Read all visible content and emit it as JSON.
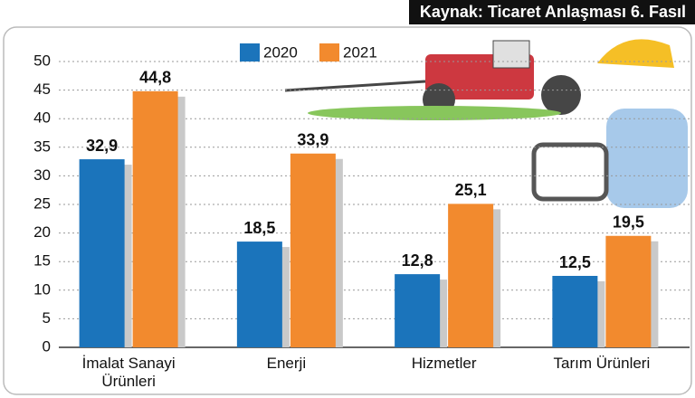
{
  "chart_data": {
    "type": "bar",
    "source": "Kaynak: Ticaret Anlaşması 6. Fasıl",
    "categories": [
      "İmalat Sanayi Ürünleri",
      "Enerji",
      "Hizmetler",
      "Tarım Ürünleri"
    ],
    "series": [
      {
        "name": "2020",
        "color": "#1b74bb",
        "values": [
          32.9,
          18.5,
          12.8,
          12.5
        ],
        "value_labels": [
          "32,9",
          "18,5",
          "12,8",
          "12,5"
        ]
      },
      {
        "name": "2021",
        "color": "#f28a2e",
        "values": [
          44.8,
          33.9,
          25.1,
          19.5
        ],
        "value_labels": [
          "44,8",
          "33,9",
          "25,1",
          "19,5"
        ]
      }
    ],
    "ylim": [
      0,
      50
    ],
    "yticks": [
      0,
      5,
      10,
      15,
      20,
      25,
      30,
      35,
      40,
      45,
      50
    ],
    "grid": true
  }
}
